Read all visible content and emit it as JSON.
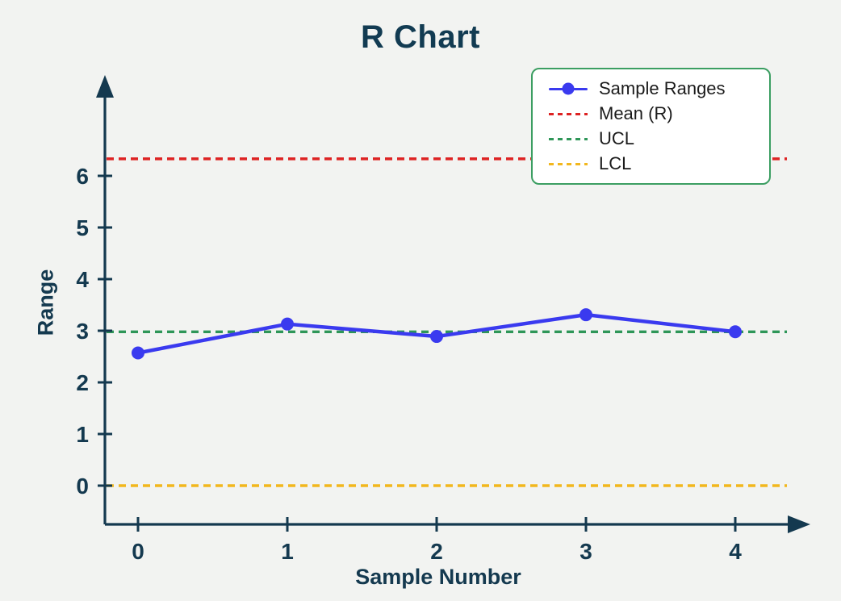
{
  "title": "R Chart",
  "colors": {
    "background": "#f2f3f1",
    "axis": "#14394f",
    "title_text": "#123b52",
    "legend_border": "#3c9e62",
    "legend_text": "#1b1b1b",
    "series_blue": "#3a3aef",
    "mean_red": "#dd2222",
    "ucl_green": "#2e9658",
    "lcl_yellow": "#f2b71d"
  },
  "chart_data": {
    "type": "line",
    "title": "R Chart",
    "xlabel": "Sample Number",
    "ylabel": "Range",
    "x": [
      0,
      1,
      2,
      3,
      4
    ],
    "x_ticks": [
      "0",
      "1",
      "2",
      "3",
      "4"
    ],
    "y_ticks": [
      "0",
      "1",
      "2",
      "3",
      "4",
      "5",
      "6"
    ],
    "xlim": [
      -0.25,
      4.5
    ],
    "ylim": [
      -0.75,
      7.9
    ],
    "grid": false,
    "series": [
      {
        "name": "Sample Ranges",
        "values": [
          2.57,
          3.13,
          2.89,
          3.31,
          2.98
        ],
        "color": "#3a3aef",
        "marker": "circle",
        "line_style": "solid"
      }
    ],
    "control_lines": [
      {
        "name": "Mean (R)",
        "value": 6.33,
        "color": "#dd2222",
        "line_style": "dashed"
      },
      {
        "name": "UCL",
        "value": 2.98,
        "color": "#2e9658",
        "line_style": "dashed"
      },
      {
        "name": "LCL",
        "value": 0.0,
        "color": "#f2b71d",
        "line_style": "dashed"
      }
    ],
    "legend": {
      "position": "upper right",
      "entries": [
        "Sample Ranges",
        "Mean (R)",
        "UCL",
        "LCL"
      ]
    }
  }
}
